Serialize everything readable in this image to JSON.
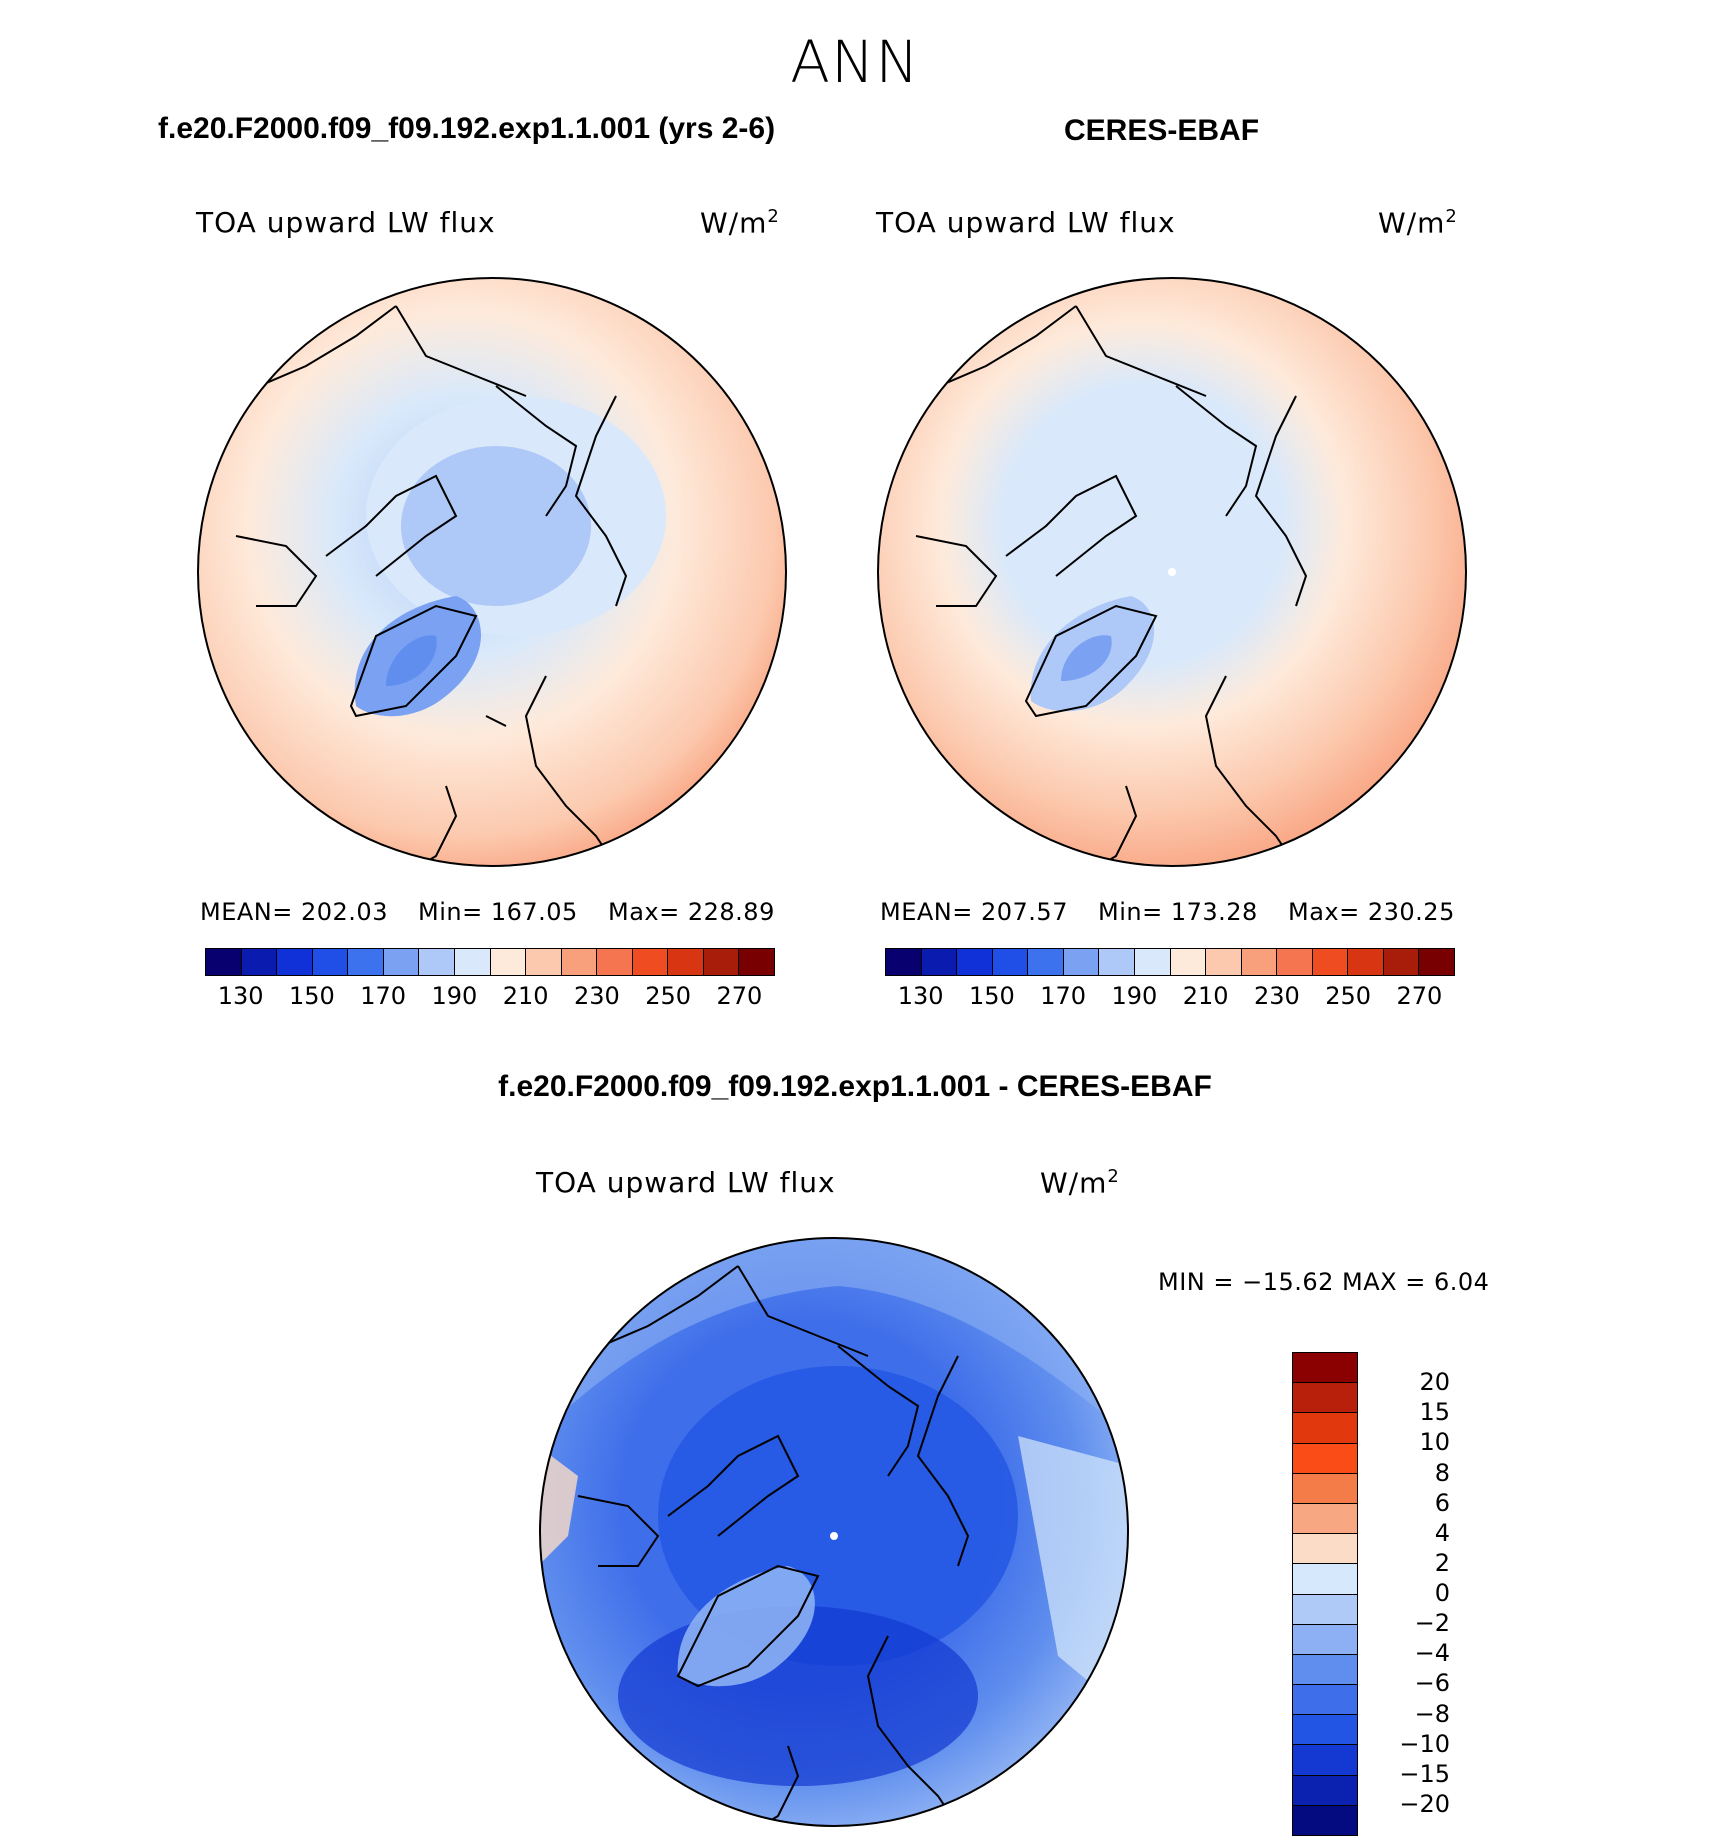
{
  "figure": {
    "season": "ANN",
    "diff_title": "f.e20.F2000.f09_f09.192.exp1.1.001 - CERES-EBAF",
    "diff_stats_label": "MIN = −15.62 MAX =    6.04"
  },
  "panels": [
    {
      "title": "f.e20.F2000.f09_f09.192.exp1.1.001 (yrs 2-6)",
      "varname": "TOA upward LW flux",
      "units": "W/m",
      "units_sup": "2",
      "mean_label": "MEAN= 202.03",
      "min_label": "Min= 167.05",
      "max_label": "Max= 228.89"
    },
    {
      "title": "CERES-EBAF",
      "varname": "TOA upward LW flux",
      "units": "W/m",
      "units_sup": "2",
      "mean_label": "MEAN= 207.57",
      "min_label": "Min= 173.28",
      "max_label": "Max= 230.25"
    },
    {
      "varname": "TOA upward LW flux",
      "units": "W/m",
      "units_sup": "2"
    }
  ],
  "colorbar_abs": {
    "colors": [
      "#08006e",
      "#0a1bb0",
      "#1030d8",
      "#1f4fe6",
      "#3d72ee",
      "#7aa1f2",
      "#aec8f7",
      "#d9e9fb",
      "#feeadb",
      "#fcc9ae",
      "#f89f7c",
      "#f4754f",
      "#f04c21",
      "#d83612",
      "#a81c0a",
      "#780000"
    ],
    "labels": [
      "130",
      "150",
      "170",
      "190",
      "210",
      "230",
      "250",
      "270"
    ]
  },
  "colorbar_diff": {
    "colors": [
      "#8b0000",
      "#b8200c",
      "#e2380e",
      "#fa4c17",
      "#f47c48",
      "#f7a882",
      "#fbdcc6",
      "#d6e8fb",
      "#afcaf7",
      "#8cb0f3",
      "#5f8eee",
      "#3f6eea",
      "#2255e4",
      "#1339d2",
      "#0b21b0",
      "#040a80"
    ],
    "labels": [
      "20",
      "15",
      "10",
      "8",
      "6",
      "4",
      "2",
      "0",
      "−2",
      "−4",
      "−6",
      "−8",
      "−10",
      "−15",
      "−20"
    ]
  },
  "chart_data": [
    {
      "type": "heatmap",
      "title": "f.e20.F2000.f09_f09.192.exp1.1.001 (yrs 2-6)",
      "variable": "TOA upward LW flux",
      "units": "W/m2",
      "projection": "north polar stereographic",
      "mean": 202.03,
      "min": 167.05,
      "max": 228.89,
      "levels": [
        130,
        140,
        150,
        160,
        170,
        180,
        190,
        200,
        210,
        220,
        230,
        240,
        250,
        260,
        270
      ]
    },
    {
      "type": "heatmap",
      "title": "CERES-EBAF",
      "variable": "TOA upward LW flux",
      "units": "W/m2",
      "projection": "north polar stereographic",
      "mean": 207.57,
      "min": 173.28,
      "max": 230.25,
      "levels": [
        130,
        140,
        150,
        160,
        170,
        180,
        190,
        200,
        210,
        220,
        230,
        240,
        250,
        260,
        270
      ]
    },
    {
      "type": "heatmap",
      "title": "f.e20.F2000.f09_f09.192.exp1.1.001 - CERES-EBAF",
      "variable": "TOA upward LW flux",
      "units": "W/m2",
      "projection": "north polar stereographic",
      "min": -15.62,
      "max": 6.04,
      "levels": [
        -20,
        -15,
        -10,
        -8,
        -6,
        -4,
        -2,
        0,
        2,
        4,
        6,
        8,
        10,
        15,
        20
      ]
    }
  ]
}
